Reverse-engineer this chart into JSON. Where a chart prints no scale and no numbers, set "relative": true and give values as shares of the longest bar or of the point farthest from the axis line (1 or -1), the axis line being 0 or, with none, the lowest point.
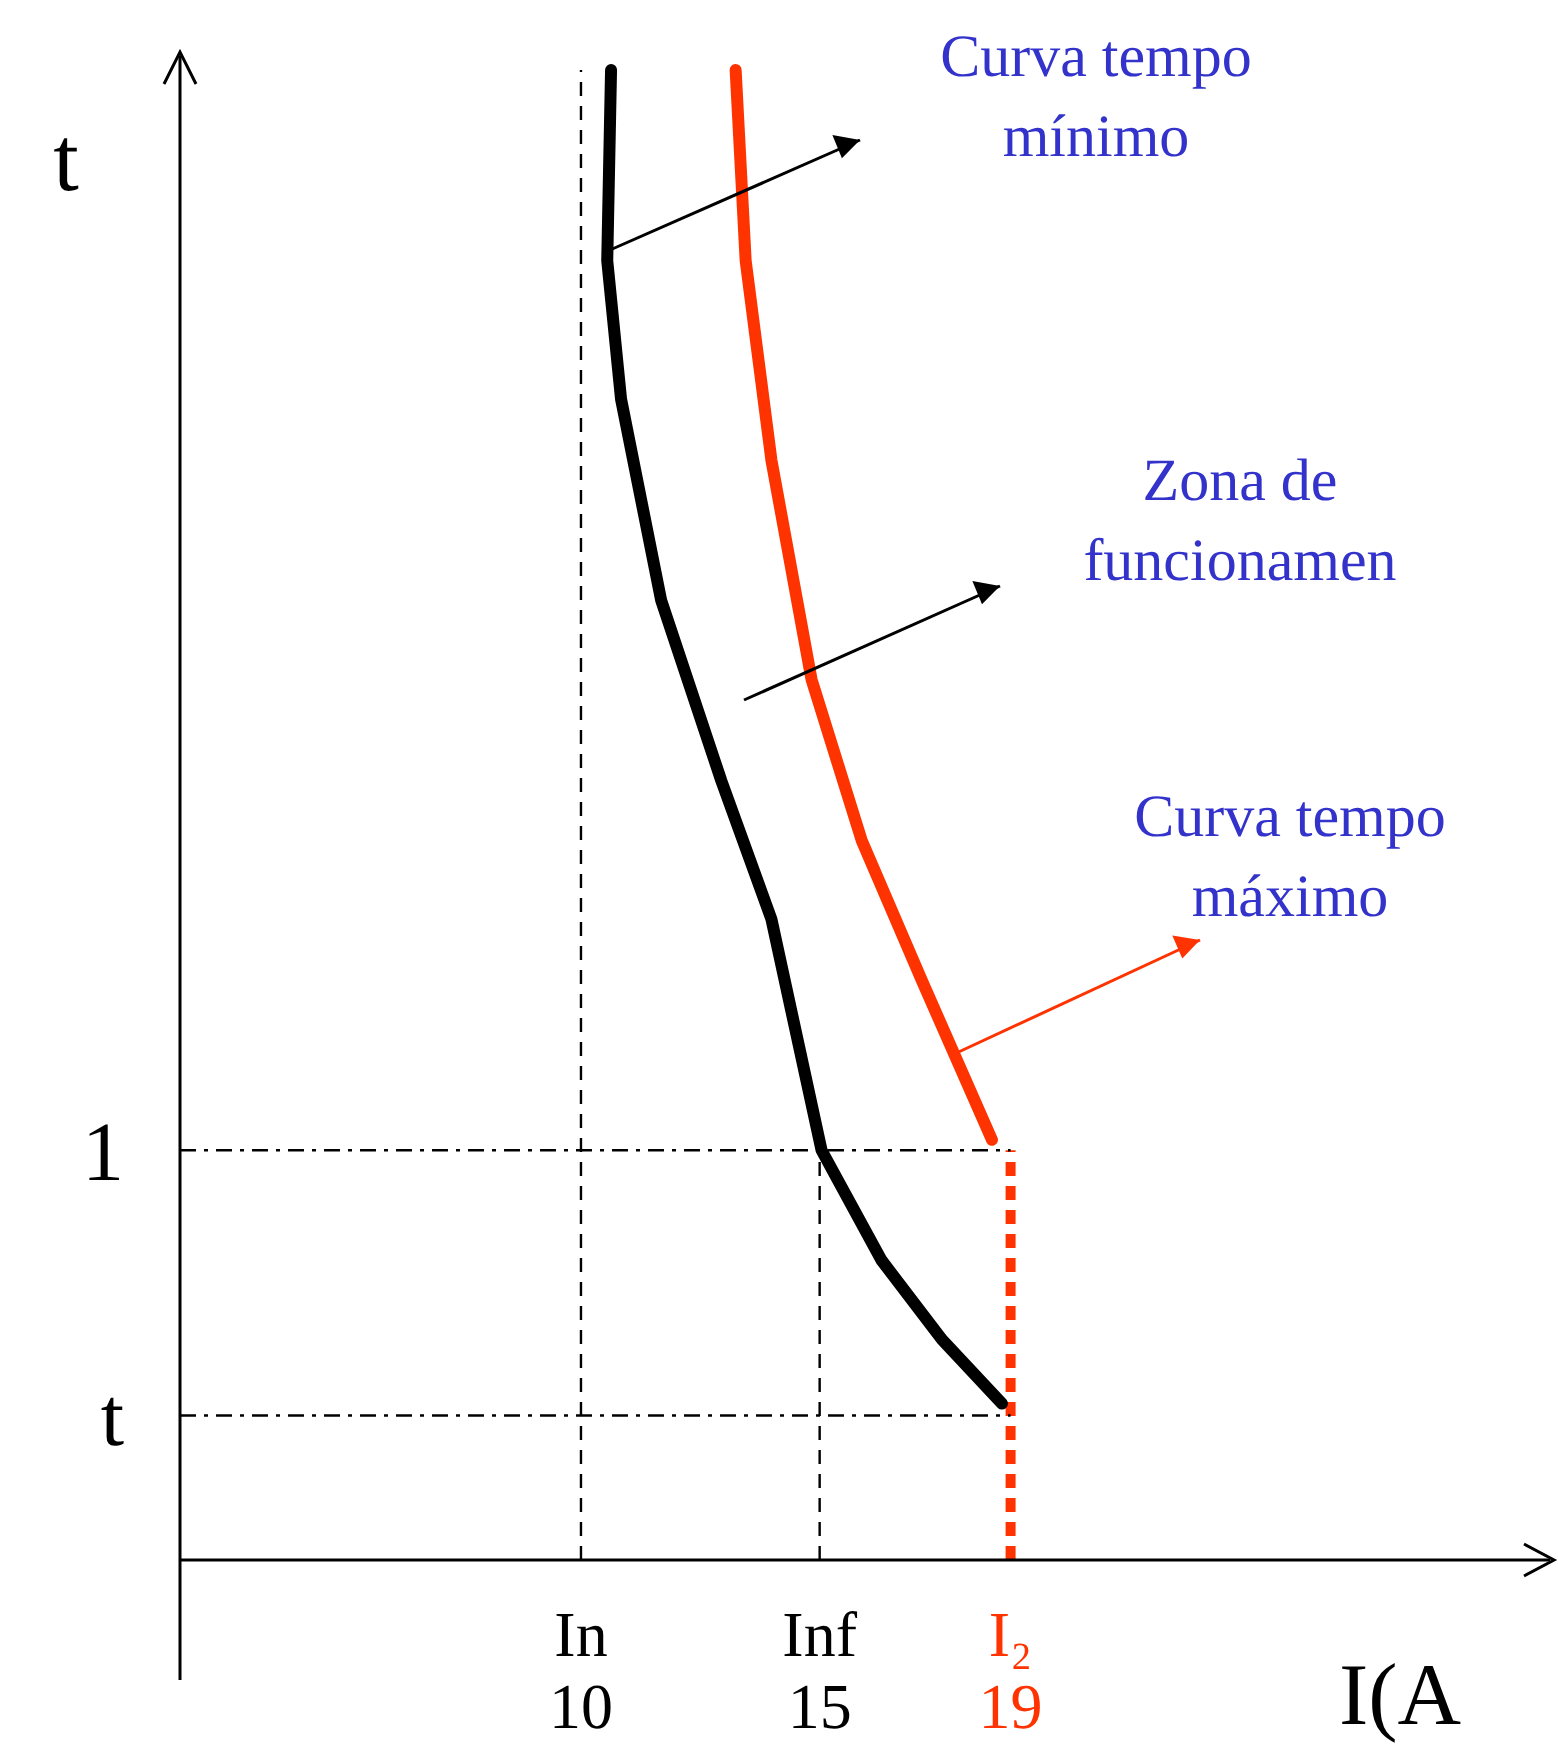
{
  "chart_data": {
    "type": "line",
    "relative": true,
    "xlabel": "I(A",
    "ylabel": "t",
    "xlim": [
      1.6,
      30.3
    ],
    "xticks": [
      10,
      15,
      19
    ],
    "series": [
      {
        "color": "#000000",
        "x": [
          10.63,
          10.55,
          10.84,
          11.68,
          12.94,
          13.99,
          15.04,
          16.3,
          17.56,
          18.82
        ],
        "values": [
          1.0,
          0.872,
          0.779,
          0.644,
          0.523,
          0.43,
          0.275,
          0.201,
          0.148,
          0.105
        ]
      },
      {
        "color": "#ff3300",
        "x": [
          13.24,
          13.45,
          13.99,
          14.83,
          15.88,
          17.14,
          18.61
        ],
        "values": [
          1.0,
          0.872,
          0.738,
          0.591,
          0.483,
          0.389,
          0.282
        ]
      }
    ],
    "ref_lines": [
      {
        "axis": "x",
        "value": 10,
        "label": "In",
        "line_style": "dashed",
        "color": "#000000"
      },
      {
        "axis": "x",
        "value": 15,
        "label": "Inf",
        "line_style": "dashed",
        "color": "#000000"
      },
      {
        "axis": "x",
        "value": 19,
        "label": "I₂",
        "line_style": "dashed",
        "color": "#ff3300"
      },
      {
        "axis": "y",
        "value": 0.275,
        "line_style": "dashed",
        "color": "#000000"
      },
      {
        "axis": "y",
        "value": 0.097,
        "line_style": "dashed",
        "color": "#000000"
      }
    ],
    "annotations": [
      "Curva tempo\nmínimo",
      "Zona de\nfuncionamen",
      "Curva tempo\nmáximo",
      "1",
      "t"
    ],
    "grid": false,
    "legend": false,
    "marker": "none",
    "line_style": "solid"
  }
}
